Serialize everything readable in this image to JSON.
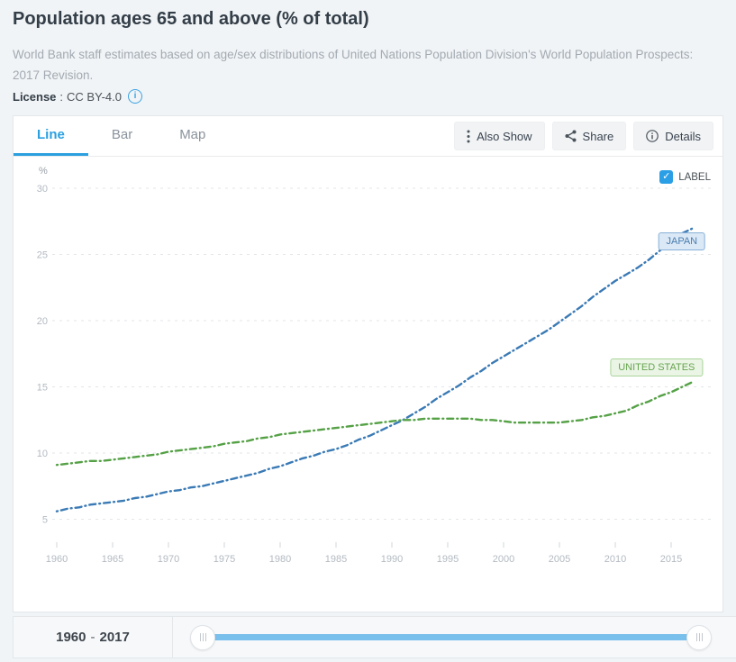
{
  "header": {
    "title": "Population ages 65 and above (% of total)",
    "description": "World Bank staff estimates based on age/sex distributions of United Nations Population Division's World Population Prospects: 2017 Revision.",
    "license_label": "License",
    "license_separator": ":",
    "license_value": "CC BY-4.0"
  },
  "panel": {
    "tabs": [
      {
        "label": "Line",
        "active": true
      },
      {
        "label": "Bar",
        "active": false
      },
      {
        "label": "Map",
        "active": false
      }
    ],
    "buttons": [
      {
        "label": "Also Show",
        "icon": "kebab-menu-icon"
      },
      {
        "label": "Share",
        "icon": "share-icon"
      },
      {
        "label": "Details",
        "icon": "info-circle-icon"
      }
    ],
    "label_toggle": {
      "label": "LABEL",
      "checked": true,
      "checkmark": "✓"
    }
  },
  "footer": {
    "range_start": "1960",
    "range_separator": "-",
    "range_end": "2017"
  },
  "colors": {
    "accent_blue": "#2ba0e0",
    "japan_line": "#3a7ab5",
    "us_line": "#55a146",
    "slider_track": "#7ac0ec",
    "grid": "#e3e6e9"
  },
  "chart_data": {
    "type": "line",
    "title": "Population ages 65 and above (% of total)",
    "xlabel": "",
    "ylabel": "%",
    "ylim": [
      3,
      31
    ],
    "xlim": [
      1959,
      2018
    ],
    "yticks": [
      5,
      10,
      15,
      20,
      25,
      30
    ],
    "xticks": [
      1960,
      1965,
      1970,
      1975,
      1980,
      1985,
      1990,
      1995,
      2000,
      2005,
      2010,
      2015
    ],
    "grid": "horizontal-dashed",
    "legend": "end-of-line-labels",
    "x": [
      1960,
      1961,
      1962,
      1963,
      1964,
      1965,
      1966,
      1967,
      1968,
      1969,
      1970,
      1971,
      1972,
      1973,
      1974,
      1975,
      1976,
      1977,
      1978,
      1979,
      1980,
      1981,
      1982,
      1983,
      1984,
      1985,
      1986,
      1987,
      1988,
      1989,
      1990,
      1991,
      1992,
      1993,
      1994,
      1995,
      1996,
      1997,
      1998,
      1999,
      2000,
      2001,
      2002,
      2003,
      2004,
      2005,
      2006,
      2007,
      2008,
      2009,
      2010,
      2011,
      2012,
      2013,
      2014,
      2015,
      2016,
      2017
    ],
    "series": [
      {
        "name": "JAPAN",
        "color": "#3a7ab5",
        "line_style": "dash-dot",
        "label_dx": -13,
        "label_dy": 15,
        "values": [
          5.6,
          5.8,
          5.9,
          6.1,
          6.2,
          6.3,
          6.4,
          6.6,
          6.7,
          6.9,
          7.1,
          7.2,
          7.4,
          7.5,
          7.7,
          7.9,
          8.1,
          8.3,
          8.5,
          8.8,
          9.0,
          9.3,
          9.6,
          9.8,
          10.1,
          10.3,
          10.6,
          11.0,
          11.3,
          11.7,
          12.1,
          12.5,
          13.0,
          13.5,
          14.1,
          14.6,
          15.1,
          15.7,
          16.2,
          16.8,
          17.3,
          17.8,
          18.3,
          18.8,
          19.3,
          19.9,
          20.5,
          21.1,
          21.8,
          22.4,
          23.0,
          23.5,
          24.0,
          24.6,
          25.3,
          26.0,
          26.6,
          27.0
        ]
      },
      {
        "name": "UNITED STATES",
        "color": "#55a146",
        "line_style": "dash-dot",
        "label_dx": -41,
        "label_dy": -16,
        "values": [
          9.1,
          9.2,
          9.3,
          9.4,
          9.4,
          9.5,
          9.6,
          9.7,
          9.8,
          9.9,
          10.1,
          10.2,
          10.3,
          10.4,
          10.5,
          10.7,
          10.8,
          10.9,
          11.1,
          11.2,
          11.4,
          11.5,
          11.6,
          11.7,
          11.8,
          11.9,
          12.0,
          12.1,
          12.2,
          12.3,
          12.4,
          12.5,
          12.5,
          12.6,
          12.6,
          12.6,
          12.6,
          12.6,
          12.5,
          12.5,
          12.4,
          12.3,
          12.3,
          12.3,
          12.3,
          12.3,
          12.4,
          12.5,
          12.7,
          12.8,
          13.0,
          13.2,
          13.6,
          13.9,
          14.3,
          14.6,
          15.0,
          15.4
        ]
      }
    ]
  }
}
